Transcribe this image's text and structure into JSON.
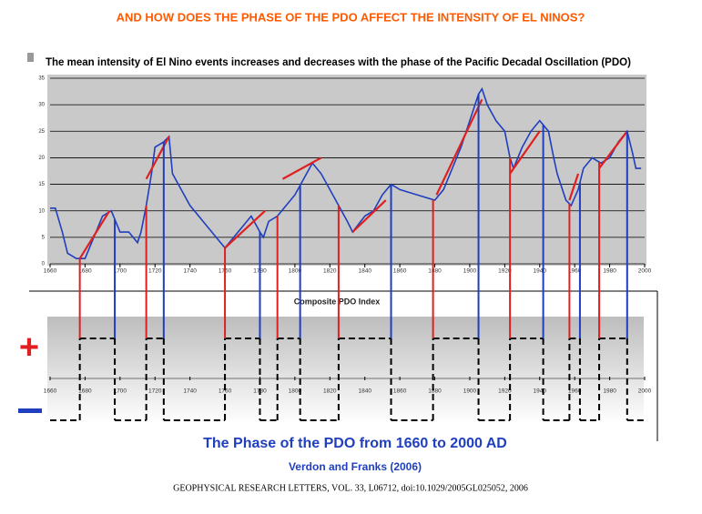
{
  "header": {
    "title": "AND HOW DOES THE PHASE OF THE PDO AFFECT THE INTENSITY OF EL NINOS?"
  },
  "plus_sign": "+",
  "chart_data": [
    {
      "type": "line",
      "title": "The mean intensity  of El Nino events increases and decreases with the phase of the Pacific Decadal Oscillation (PDO)",
      "xlim": [
        1660,
        2000
      ],
      "xticks": [
        1660,
        1680,
        1700,
        1720,
        1740,
        1760,
        1780,
        1800,
        1820,
        1840,
        1860,
        1880,
        1900,
        1920,
        1940,
        1960,
        1980,
        2000
      ],
      "ylim": [
        0,
        35
      ],
      "yticks": [
        0,
        5,
        10,
        15,
        20,
        25,
        30,
        35
      ],
      "grid": true,
      "series": [
        {
          "color": "#1f3fbf",
          "x": [
            1660,
            1663,
            1667,
            1670,
            1675,
            1680,
            1685,
            1690,
            1695,
            1700,
            1705,
            1710,
            1712,
            1715,
            1718,
            1720,
            1725,
            1728,
            1730,
            1735,
            1740,
            1745,
            1750,
            1755,
            1760,
            1765,
            1770,
            1775,
            1780,
            1782,
            1785,
            1790,
            1795,
            1800,
            1805,
            1810,
            1815,
            1820,
            1825,
            1830,
            1833,
            1840,
            1845,
            1850,
            1855,
            1860,
            1870,
            1880,
            1885,
            1890,
            1895,
            1900,
            1905,
            1907,
            1910,
            1915,
            1920,
            1923,
            1925,
            1930,
            1935,
            1940,
            1945,
            1948,
            1950,
            1955,
            1958,
            1962,
            1965,
            1970,
            1975,
            1980,
            1985,
            1990,
            1993,
            1995,
            1998
          ],
          "values": [
            10.5,
            10.5,
            6,
            2,
            1,
            1,
            5,
            9,
            10,
            6,
            6,
            4,
            6,
            11,
            17,
            22,
            23,
            24,
            17,
            14,
            11,
            9,
            7,
            5,
            3,
            5,
            7,
            9,
            6,
            5,
            8,
            9,
            11,
            13,
            16,
            19,
            17,
            14,
            11,
            8,
            6,
            9,
            10,
            13,
            15,
            14,
            13,
            12,
            14,
            18,
            22,
            27,
            32,
            33,
            30,
            27,
            25,
            20,
            18,
            22,
            25,
            27,
            25,
            20,
            17,
            12,
            11,
            14,
            18,
            20,
            19,
            20,
            23,
            25,
            21,
            18,
            18
          ]
        },
        {
          "color": "#e02020",
          "x": [
            1677,
            1694
          ],
          "values": [
            1,
            10
          ]
        },
        {
          "color": "#e02020",
          "x": [
            1715,
            1728
          ],
          "values": [
            16,
            24
          ]
        },
        {
          "color": "#e02020",
          "x": [
            1760,
            1783
          ],
          "values": [
            3,
            10
          ]
        },
        {
          "color": "#e02020",
          "x": [
            1793,
            1815
          ],
          "values": [
            16,
            20
          ]
        },
        {
          "color": "#e02020",
          "x": [
            1833,
            1852
          ],
          "values": [
            6,
            12
          ]
        },
        {
          "color": "#e02020",
          "x": [
            1881,
            1907
          ],
          "values": [
            13,
            31
          ]
        },
        {
          "color": "#e02020",
          "x": [
            1923,
            1940
          ],
          "values": [
            17,
            25
          ]
        },
        {
          "color": "#e02020",
          "x": [
            1957,
            1962
          ],
          "values": [
            12,
            17
          ]
        },
        {
          "color": "#e02020",
          "x": [
            1974,
            1990
          ],
          "values": [
            18,
            25
          ]
        }
      ]
    },
    {
      "type": "step",
      "xlabel": "Composite PDO Index",
      "xlim": [
        1660,
        2000
      ],
      "xticks": [
        1660,
        1680,
        1700,
        1720,
        1740,
        1760,
        1780,
        1800,
        1820,
        1840,
        1860,
        1880,
        1900,
        1920,
        1940,
        1960,
        1980,
        2000
      ],
      "ylim": [
        -1,
        1
      ],
      "positive_color": "#e02020",
      "negative_color": "#1f3fbf",
      "x": [
        1660,
        1677,
        1697,
        1715,
        1725,
        1760,
        1780,
        1790,
        1803,
        1825,
        1855,
        1879,
        1905,
        1923,
        1942,
        1957,
        1963,
        1974,
        1990
      ],
      "values": [
        -1,
        1,
        -1,
        1,
        -1,
        1,
        -1,
        1,
        -1,
        1,
        -1,
        1,
        -1,
        1,
        -1,
        1,
        -1,
        1,
        -1
      ]
    }
  ],
  "footer": {
    "subtitle": "The Phase of the PDO from 1660 to 2000 AD",
    "author": "Verdon and Franks (2006)",
    "citation": "GEOPHYSICAL RESEARCH LETTERS, VOL. 33, L06712, doi:10.1029/2005GL025052, 2006"
  }
}
